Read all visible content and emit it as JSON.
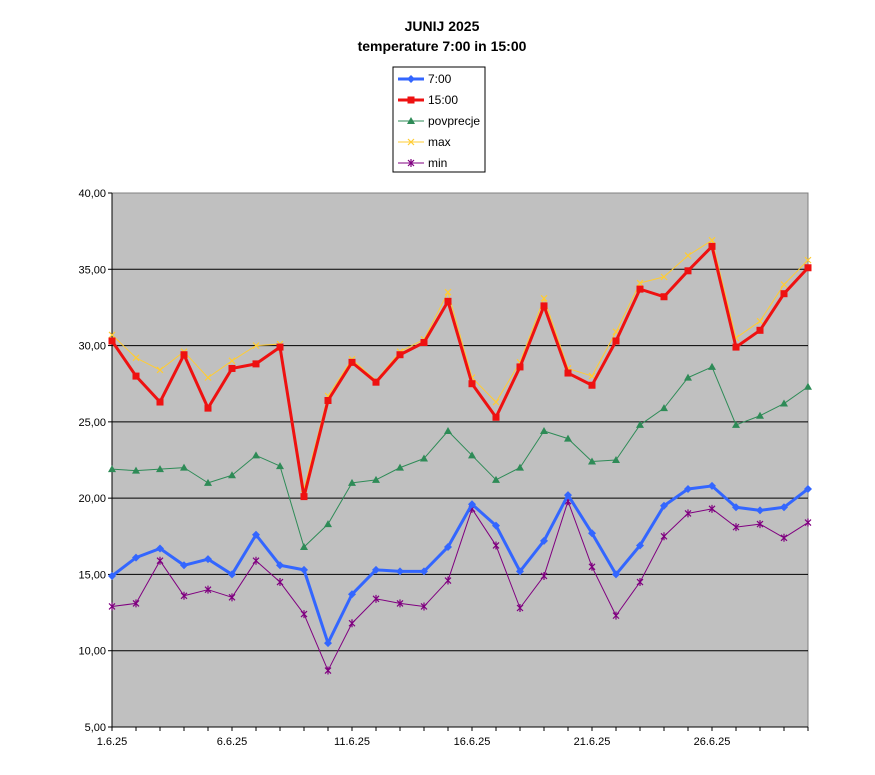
{
  "chart_data": {
    "type": "line",
    "title": "JUNIJ 2025",
    "subtitle": "temperature 7:00 in 15:00",
    "ylim": [
      5,
      40
    ],
    "yticks": [
      "5,00",
      "10,00",
      "15,00",
      "20,00",
      "25,00",
      "30,00",
      "35,00",
      "40,00"
    ],
    "grid": true,
    "legend_position": "top-center",
    "x": [
      1,
      2,
      3,
      4,
      5,
      6,
      7,
      8,
      9,
      10,
      11,
      12,
      13,
      14,
      15,
      16,
      17,
      18,
      19,
      20,
      21,
      22,
      23,
      24,
      25,
      26,
      27,
      28,
      29,
      30
    ],
    "xtick_labels": [
      {
        "x": 1,
        "label": "1.6.25"
      },
      {
        "x": 6,
        "label": "6.6.25"
      },
      {
        "x": 11,
        "label": "11.6.25"
      },
      {
        "x": 16,
        "label": "16.6.25"
      },
      {
        "x": 21,
        "label": "21.6.25"
      },
      {
        "x": 26,
        "label": "26.6.25"
      }
    ],
    "series": [
      {
        "name": "7:00",
        "color": "#3366ff",
        "marker": "diamond",
        "bold": true,
        "values": [
          14.9,
          16.1,
          16.7,
          15.6,
          16.0,
          15.0,
          17.6,
          15.6,
          15.3,
          10.5,
          13.7,
          15.3,
          15.2,
          15.2,
          16.8,
          19.6,
          18.2,
          15.2,
          17.2,
          20.2,
          17.7,
          15.0,
          16.9,
          19.5,
          20.6,
          20.8,
          19.4,
          19.2,
          19.4,
          20.6
        ]
      },
      {
        "name": "15:00",
        "color": "#ee1111",
        "marker": "square",
        "bold": true,
        "values": [
          30.3,
          28.0,
          26.3,
          29.4,
          25.9,
          28.5,
          28.8,
          29.9,
          20.1,
          26.4,
          28.9,
          27.6,
          29.4,
          30.2,
          32.9,
          27.5,
          25.3,
          28.6,
          32.6,
          28.2,
          27.4,
          30.3,
          33.7,
          33.2,
          34.9,
          36.5,
          29.9,
          31.0,
          33.4,
          35.1
        ]
      },
      {
        "name": "povprecje",
        "color": "#2e8b57",
        "marker": "triangle",
        "bold": false,
        "values": [
          21.9,
          21.8,
          21.9,
          22.0,
          21.0,
          21.5,
          22.8,
          22.1,
          16.8,
          18.3,
          21.0,
          21.2,
          22.0,
          22.6,
          24.4,
          22.8,
          21.2,
          22.0,
          24.4,
          23.9,
          22.4,
          22.5,
          24.8,
          25.9,
          27.9,
          28.6,
          24.8,
          25.4,
          26.2,
          27.3
        ]
      },
      {
        "name": "max",
        "color": "#ffcc33",
        "marker": "x",
        "bold": false,
        "values": [
          30.7,
          29.2,
          28.4,
          29.6,
          27.9,
          29.0,
          30.0,
          30.1,
          20.6,
          26.7,
          29.1,
          27.7,
          29.6,
          30.4,
          33.5,
          27.9,
          26.3,
          28.9,
          33.1,
          28.5,
          28.0,
          30.9,
          34.1,
          34.5,
          35.9,
          36.9,
          30.5,
          31.6,
          34.0,
          35.6
        ]
      },
      {
        "name": "min",
        "color": "#800080",
        "marker": "star",
        "bold": false,
        "values": [
          12.9,
          13.1,
          15.9,
          13.6,
          14.0,
          13.5,
          15.9,
          14.5,
          12.4,
          8.7,
          11.8,
          13.4,
          13.1,
          12.9,
          14.6,
          19.3,
          16.9,
          12.8,
          14.9,
          19.8,
          15.5,
          12.3,
          14.5,
          17.5,
          19.0,
          19.3,
          18.1,
          18.3,
          17.4,
          18.4
        ]
      }
    ]
  }
}
